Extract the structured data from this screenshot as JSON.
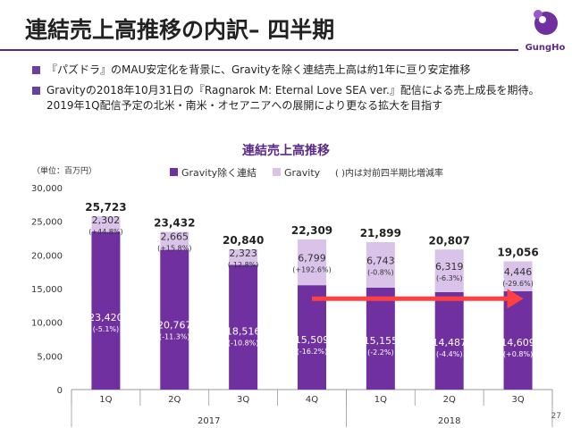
{
  "slide": {
    "title": "連結売上高推移の内訳– 四半期",
    "bullets": [
      "『パズドラ』のMAU安定化を背景に、Gravityを除く連結売上高は約1年に亘り安定推移",
      "Gravityの2018年10月31日の『Ragnarok M: Eternal Love SEA ver.』配信による売上成長を期待。2019年1Q配信予定の北米・南米・オセアニアへの展開により更なる拡大を目指す"
    ],
    "page_number": "27",
    "logo_text": "GungHo"
  },
  "colors": {
    "base_bar": "#7030a0",
    "gravity_bar": "#d9c3e9",
    "arrow": "#ff4040",
    "accent": "#5b2a86"
  },
  "chart_data": {
    "type": "bar",
    "stacked": true,
    "title": "連結売上高推移",
    "unit_label": "（単位：百万円）",
    "legend_note": "( )内は対前四半期比増減率",
    "categories": [
      "1Q",
      "2Q",
      "3Q",
      "4Q",
      "1Q",
      "2Q",
      "3Q"
    ],
    "years": [
      {
        "label": "2017",
        "span": [
          0,
          3
        ]
      },
      {
        "label": "2018",
        "span": [
          4,
          6
        ]
      }
    ],
    "series": [
      {
        "name": "Gravity除く連結",
        "values": [
          23420,
          20767,
          18516,
          15509,
          15155,
          14487,
          14609
        ],
        "value_labels": [
          "23,420",
          "20,767",
          "18,516",
          "15,509",
          "15,155",
          "14,487",
          "14,609"
        ],
        "change_labels": [
          "(-5.1%)",
          "(-11.3%)",
          "(-10.8%)",
          "(-16.2%)",
          "(-2.2%)",
          "(-4.4%)",
          "(+0.8%)"
        ]
      },
      {
        "name": "Gravity",
        "values": [
          2302,
          2665,
          2323,
          6799,
          6743,
          6319,
          4446
        ],
        "value_labels": [
          "2,302",
          "2,665",
          "2,323",
          "6,799",
          "6,743",
          "6,319",
          "4,446"
        ],
        "change_labels": [
          "(+44.8%)",
          "(+15.8%)",
          "(-12.8%)",
          "(+192.6%)",
          "(-0.8%)",
          "(-6.3%)",
          "(-29.6%)"
        ]
      }
    ],
    "totals": [
      25723,
      23432,
      20840,
      22309,
      21899,
      20807,
      19056
    ],
    "total_labels": [
      "25,723",
      "23,432",
      "20,840",
      "22,309",
      "21,899",
      "20,807",
      "19,056"
    ],
    "ylim": [
      0,
      30000
    ],
    "yticks": [
      0,
      5000,
      10000,
      15000,
      20000,
      25000,
      30000
    ],
    "ytick_labels": [
      "0",
      "5,000",
      "10,000",
      "15,000",
      "20,000",
      "25,000",
      "30,000"
    ],
    "arrow": {
      "from_category": 3,
      "to_category": 6,
      "y": 13500
    },
    "grid": false
  }
}
